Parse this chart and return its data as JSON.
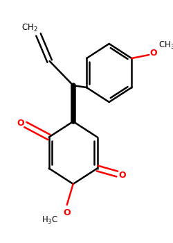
{
  "bg_color": "#ffffff",
  "bond_color": "#000000",
  "oxygen_color": "#ff0000",
  "bond_width": 1.8,
  "figure_size": [
    2.5,
    3.5
  ],
  "dpi": 100,
  "xlim": [
    0,
    250
  ],
  "ylim": [
    0,
    350
  ]
}
